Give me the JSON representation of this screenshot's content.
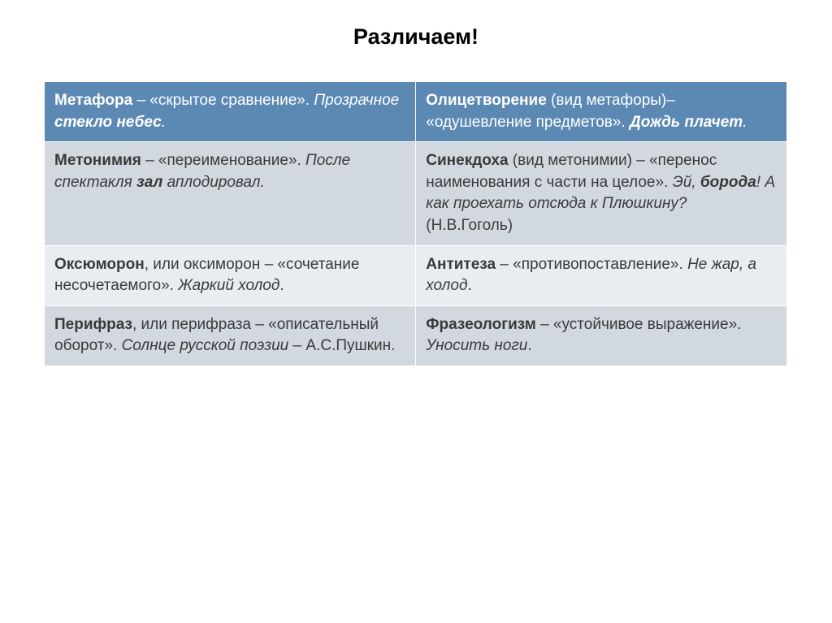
{
  "title": "Различаем!",
  "table": {
    "header": {
      "left": {
        "term": "Метафора",
        "def": " – «скрытое сравнение». ",
        "ex_prefix": "Прозрачное ",
        "ex_em": "стекло небес",
        "ex_suffix": "."
      },
      "right": {
        "term": "Олицетворение",
        "def_a": " (вид метафоры)– «одушевление предметов». ",
        "ex_em": "Дождь плачет",
        "ex_suffix": "."
      }
    },
    "rows": [
      {
        "left": {
          "term": "Метонимия",
          "def": " – «переименование». ",
          "ex_prefix": "После спектакля ",
          "ex_em": "зал",
          "ex_suffix": " аплодировал."
        },
        "right": {
          "term": "Синекдоха",
          "def_a": " (вид метонимии) – «перенос наименования с части на целое». ",
          "ex_prefix": "Эй, ",
          "ex_em": "борода",
          "ex_mid": "! А как проехать отсюда к Плюшкину?",
          "ex_suffix": " (Н.В.Гоголь)"
        }
      },
      {
        "left": {
          "term": "Оксюморон",
          "def": ", или оксиморон – «сочетание несочетаемого». ",
          "ex_em": "Жаркий холод",
          "ex_suffix": "."
        },
        "right": {
          "term": "Антитеза",
          "def_a": " – «противопоставление». ",
          "ex_em": "Не жар, а холод",
          "ex_suffix": "."
        }
      },
      {
        "left": {
          "term": "Перифраз",
          "def": ", или перифраза – «описательный оборот». ",
          "ex_em": "Солнце русской поэзии",
          "ex_suffix": " – А.С.Пушкин."
        },
        "right": {
          "term": "Фразеологизм",
          "def_a": " – «устойчивое выражение». ",
          "ex_em": "Уносить ноги",
          "ex_suffix": "."
        }
      }
    ]
  }
}
